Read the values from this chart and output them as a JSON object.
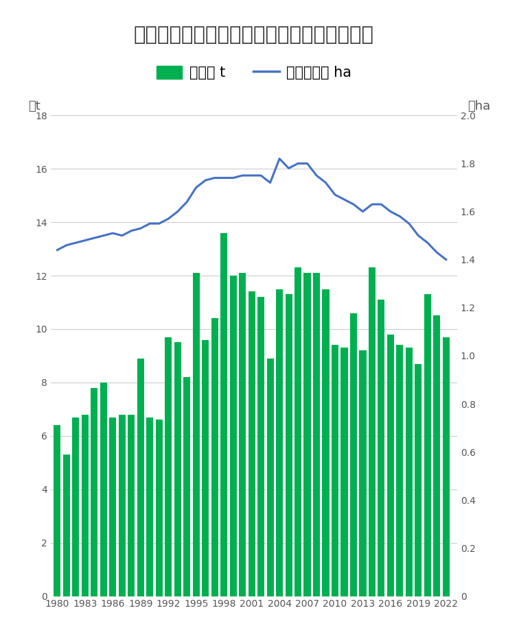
{
  "title": "梅の収穮量と出荷量と結果樹面積の長期推移",
  "years": [
    1980,
    1981,
    1982,
    1983,
    1984,
    1985,
    1986,
    1987,
    1988,
    1989,
    1990,
    1991,
    1992,
    1993,
    1994,
    1995,
    1996,
    1997,
    1998,
    1999,
    2000,
    2001,
    2002,
    2003,
    2004,
    2005,
    2006,
    2007,
    2008,
    2009,
    2010,
    2011,
    2012,
    2013,
    2014,
    2015,
    2016,
    2017,
    2018,
    2019,
    2020,
    2021,
    2022
  ],
  "harvest": [
    6.4,
    5.3,
    6.7,
    6.8,
    7.8,
    8.0,
    6.7,
    6.8,
    6.8,
    8.9,
    6.7,
    6.6,
    9.7,
    9.5,
    8.2,
    12.1,
    9.6,
    10.4,
    13.6,
    12.0,
    12.1,
    11.4,
    11.2,
    8.9,
    11.5,
    11.3,
    12.3,
    12.1,
    12.1,
    11.5,
    9.4,
    9.3,
    10.6,
    9.2,
    12.3,
    11.1,
    9.8,
    9.4,
    9.3,
    8.7,
    11.3,
    10.5,
    9.7
  ],
  "area": [
    1.44,
    1.46,
    1.47,
    1.48,
    1.49,
    1.5,
    1.51,
    1.5,
    1.52,
    1.53,
    1.55,
    1.55,
    1.57,
    1.6,
    1.64,
    1.7,
    1.73,
    1.74,
    1.74,
    1.74,
    1.75,
    1.75,
    1.75,
    1.72,
    1.82,
    1.78,
    1.8,
    1.8,
    1.75,
    1.72,
    1.67,
    1.65,
    1.63,
    1.6,
    1.63,
    1.63,
    1.6,
    1.58,
    1.55,
    1.5,
    1.47,
    1.43,
    1.4
  ],
  "bar_color": "#00b050",
  "line_color": "#4472c4",
  "background_color": "#ffffff",
  "ylabel_left": "万t",
  "ylabel_right": "万ha",
  "ylim_left": [
    0,
    18
  ],
  "ylim_right": [
    0,
    2
  ],
  "legend_bar": "収穮量 t",
  "legend_line": "結果樹面積 ha",
  "title_fontsize": 21,
  "tick_label_fontsize": 13,
  "axis_label_fontsize": 13,
  "legend_fontsize": 15
}
